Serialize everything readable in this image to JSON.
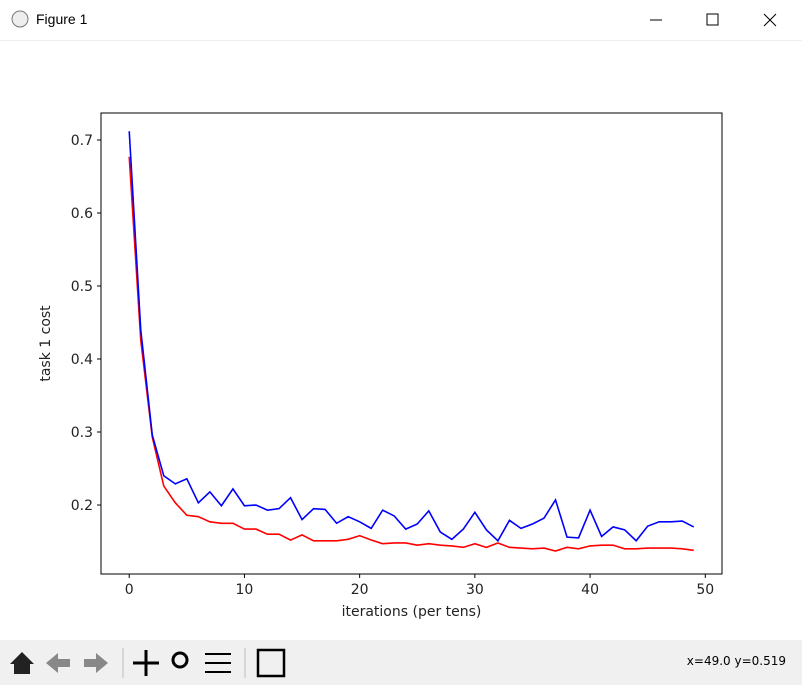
{
  "window": {
    "title": "Figure 1",
    "status": "x=49.0 y=0.519"
  },
  "chart_data": {
    "type": "line",
    "xlabel": "iterations (per tens)",
    "ylabel": "task 1 cost",
    "x": [
      0,
      1,
      2,
      3,
      4,
      5,
      6,
      7,
      8,
      9,
      10,
      11,
      12,
      13,
      14,
      15,
      16,
      17,
      18,
      19,
      20,
      21,
      22,
      23,
      24,
      25,
      26,
      27,
      28,
      29,
      30,
      31,
      32,
      33,
      34,
      35,
      36,
      37,
      38,
      39,
      40,
      41,
      42,
      43,
      44,
      45,
      46,
      47,
      48,
      49
    ],
    "series": [
      {
        "color": "#ff0000",
        "values": [
          0.677,
          0.426,
          0.293,
          0.226,
          0.203,
          0.186,
          0.184,
          0.177,
          0.175,
          0.175,
          0.167,
          0.167,
          0.16,
          0.16,
          0.152,
          0.159,
          0.151,
          0.151,
          0.151,
          0.153,
          0.158,
          0.152,
          0.147,
          0.148,
          0.148,
          0.145,
          0.147,
          0.145,
          0.144,
          0.142,
          0.147,
          0.142,
          0.148,
          0.142,
          0.141,
          0.14,
          0.141,
          0.137,
          0.142,
          0.14,
          0.144,
          0.145,
          0.145,
          0.14,
          0.14,
          0.141,
          0.141,
          0.141,
          0.14,
          0.138
        ]
      },
      {
        "color": "#0000ff",
        "values": [
          0.712,
          0.44,
          0.296,
          0.24,
          0.229,
          0.236,
          0.203,
          0.218,
          0.199,
          0.222,
          0.199,
          0.2,
          0.193,
          0.195,
          0.21,
          0.18,
          0.195,
          0.194,
          0.175,
          0.184,
          0.177,
          0.168,
          0.193,
          0.185,
          0.167,
          0.174,
          0.192,
          0.163,
          0.153,
          0.167,
          0.19,
          0.166,
          0.151,
          0.179,
          0.168,
          0.174,
          0.182,
          0.207,
          0.156,
          0.155,
          0.193,
          0.157,
          0.17,
          0.166,
          0.151,
          0.171,
          0.177,
          0.177,
          0.178,
          0.17
        ]
      }
    ],
    "xlim": [
      -2.45,
      51.45
    ],
    "xticks": [
      0,
      10,
      20,
      30,
      40,
      50
    ],
    "ylim": [
      0.1055,
      0.737
    ],
    "yticks": [
      0.2,
      0.3,
      0.4,
      0.5,
      0.6,
      0.7
    ]
  }
}
